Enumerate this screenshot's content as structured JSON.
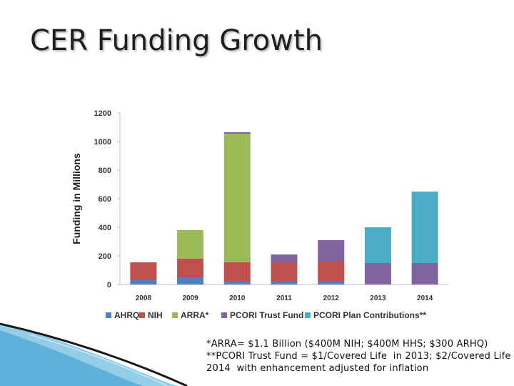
{
  "slide": {
    "title": "CER Funding Growth",
    "footnotes": [
      "*ARRA= $1.1 Billion ($400M NIH; $400M HHS; $300 ARHQ)",
      "**PCORI Trust Fund = $1/Covered Life  in 2013; $2/Covered Life",
      "2014  with enhancement adjusted for inflation"
    ]
  },
  "chart_data": {
    "type": "bar",
    "stacked": true,
    "ylabel": "Funding in Millions",
    "xlabel": "",
    "ylim": [
      0,
      1200
    ],
    "yticks": [
      0,
      200,
      400,
      600,
      800,
      1000,
      1200
    ],
    "categories": [
      "2008",
      "2009",
      "2010",
      "2011",
      "2012",
      "2013",
      "2014"
    ],
    "series": [
      {
        "name": "AHRQ",
        "color": "#4f81bd",
        "values": [
          30,
          50,
          20,
          20,
          20,
          0,
          0
        ]
      },
      {
        "name": "NIH",
        "color": "#c0504d",
        "values": [
          125,
          130,
          135,
          135,
          140,
          0,
          0
        ]
      },
      {
        "name": "ARRA*",
        "color": "#9bbb59",
        "values": [
          0,
          200,
          900,
          0,
          0,
          0,
          0
        ]
      },
      {
        "name": "PCORI Trust Fund",
        "color": "#8064a2",
        "values": [
          0,
          0,
          10,
          55,
          150,
          150,
          150
        ]
      },
      {
        "name": "PCORI Plan Contributions**",
        "color": "#4bacc6",
        "values": [
          0,
          0,
          0,
          0,
          0,
          250,
          500
        ]
      }
    ],
    "grid": false,
    "legend_position": "bottom"
  }
}
